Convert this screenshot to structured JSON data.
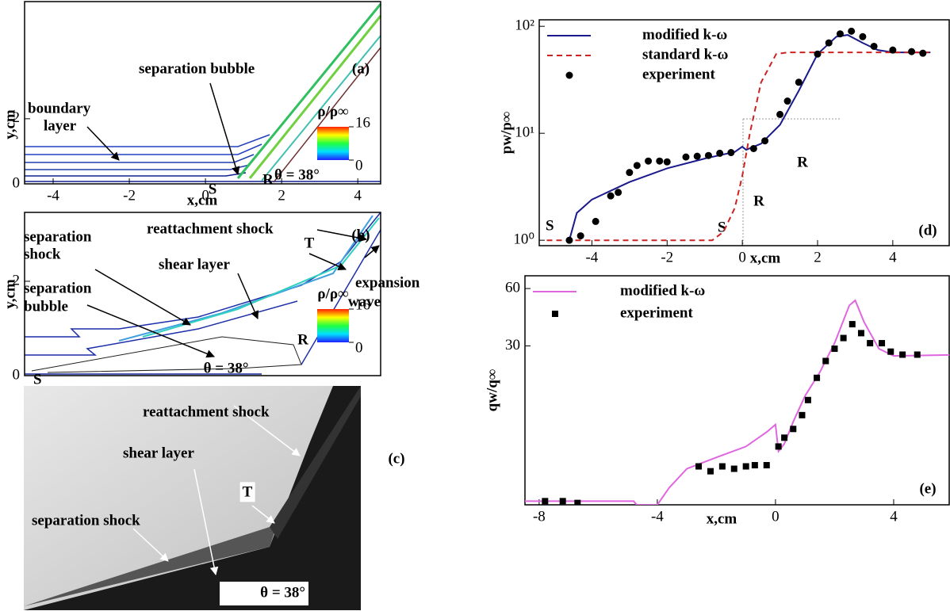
{
  "chart_data": [
    {
      "type": "contour",
      "panel": "(a)",
      "xlabel": "x,cm",
      "ylabel": "y,cm",
      "xlim": [
        -4.75,
        4.6
      ],
      "ylim": [
        0,
        5.6
      ],
      "xticks": [
        -4,
        -2,
        0,
        2,
        4
      ],
      "yticks": [
        0,
        2
      ],
      "colorbar": {
        "label": "ρ/ρ∞",
        "clim": [
          0,
          16
        ],
        "ticks": [
          0,
          16
        ]
      },
      "annotations": [
        "boundary",
        "layer",
        "separation bubble",
        "S",
        "R",
        "θ = 38°"
      ]
    },
    {
      "type": "contour",
      "panel": "(b)",
      "ylabel": "y,cm",
      "xlim": [
        -4.75,
        4.6
      ],
      "ylim": [
        0,
        3.46
      ],
      "yticks": [
        0,
        2
      ],
      "colorbar": {
        "label": "ρ/ρ∞",
        "clim": [
          0,
          16
        ],
        "ticks": [
          0,
          16
        ]
      },
      "annotations": [
        "separation",
        "shock",
        "reattachment shock",
        "shear layer",
        "separation",
        "bubble",
        "T",
        "expansion",
        "wave",
        "R",
        "S",
        "θ = 38°"
      ]
    },
    {
      "type": "photo",
      "panel": "(c)",
      "annotations": [
        "reattachment shock",
        "shear layer",
        "T",
        "separation shock",
        "θ = 38°"
      ]
    },
    {
      "type": "line",
      "panel": "(d)",
      "xlabel": "x,cm",
      "ylabel": "pw/p∞",
      "log_y": true,
      "xlim": [
        -5.4,
        5.5
      ],
      "ylim": [
        0.89,
        115
      ],
      "xticks": [
        -4,
        -2,
        0,
        2,
        4
      ],
      "yticks": [
        {
          "value": 1,
          "label": "10⁰"
        },
        {
          "value": 10,
          "label": "10¹"
        },
        {
          "value": 100,
          "label": "10²"
        }
      ],
      "series": [
        {
          "name": "modified k-ω",
          "color": "#1a1a8c",
          "style": "solid",
          "x": [
            -4.6,
            -4.4,
            -4,
            -3,
            -2,
            -1,
            -0.2,
            0,
            0.1,
            0.5,
            1,
            1.5,
            2,
            2.5,
            2.8,
            3.2,
            3.6,
            4,
            5
          ],
          "values": [
            1,
            1.8,
            2.4,
            3.5,
            4.7,
            5.8,
            6.7,
            7.5,
            7,
            8,
            12,
            25,
            55,
            80,
            83,
            70,
            60,
            57,
            57
          ]
        },
        {
          "name": "standard k-ω",
          "color": "#cc2222",
          "style": "dashed",
          "x": [
            -5.2,
            -0.8,
            -0.5,
            -0.2,
            0,
            0.2,
            0.5,
            0.9,
            1.2,
            5
          ],
          "values": [
            1,
            1,
            1.2,
            2,
            4,
            10,
            30,
            55,
            57,
            57
          ]
        },
        {
          "name": "experiment",
          "color": "#000000",
          "style": "markers",
          "x": [
            -4.6,
            -4.3,
            -3.9,
            -3.5,
            -3.3,
            -3,
            -2.8,
            -2.5,
            -2.2,
            -2,
            -1.5,
            -1.2,
            -0.9,
            -0.6,
            -0.3,
            0.3,
            0.6,
            1,
            1.2,
            1.5,
            2,
            2.3,
            2.6,
            2.9,
            3.2,
            3.5,
            4,
            4.5,
            4.8
          ],
          "values": [
            1,
            1.1,
            1.5,
            2.6,
            2.8,
            4.3,
            5,
            5.5,
            5.5,
            5.4,
            6,
            6.1,
            6.2,
            6.5,
            6.6,
            7.2,
            8.5,
            15,
            20,
            30,
            55,
            70,
            85,
            90,
            80,
            65,
            60,
            58,
            56
          ]
        }
      ],
      "annotations": [
        "S",
        "S",
        "R",
        "R"
      ]
    },
    {
      "type": "line",
      "panel": "(e)",
      "xlabel": "x,cm",
      "ylabel": "qw/q∞",
      "log_y": true,
      "xlim": [
        -8.48,
        5.88
      ],
      "ylim": [
        4.4,
        70
      ],
      "xticks": [
        -8,
        -4,
        0,
        4
      ],
      "yticks": [
        30,
        60
      ],
      "series": [
        {
          "name": "modified k-ω",
          "color": "#e066e0",
          "style": "solid",
          "x": [
            -8.5,
            -4.8,
            -4.7,
            -4,
            -3.6,
            -3,
            -2,
            -1,
            -0.3,
            0,
            0.1,
            0.3,
            0.6,
            1,
            1.5,
            2,
            2.5,
            2.7,
            3,
            3.5,
            4,
            5.9
          ],
          "values": [
            4.6,
            4.6,
            4.4,
            4.4,
            5.4,
            6.8,
            7.8,
            8.9,
            10.6,
            11.6,
            8.4,
            9.2,
            12,
            16.4,
            21.8,
            31,
            49,
            52,
            40,
            29,
            26.6,
            26.9
          ]
        },
        {
          "name": "experiment",
          "color": "#000000",
          "style": "squares",
          "x": [
            -7.8,
            -7.2,
            -6.7,
            -2.6,
            -2.2,
            -1.8,
            -1.4,
            -1,
            -0.7,
            -0.3,
            0.1,
            0.3,
            0.6,
            0.9,
            1.1,
            1.4,
            1.7,
            2,
            2.3,
            2.6,
            2.9,
            3.2,
            3.6,
            3.9,
            4.3,
            4.8
          ],
          "values": [
            4.6,
            4.6,
            4.5,
            7,
            6.6,
            7,
            6.8,
            7,
            7.1,
            7.1,
            8.9,
            9.9,
            11,
            13,
            15.6,
            20.4,
            25,
            29,
            33,
            39,
            35,
            31,
            31,
            28,
            27,
            27
          ]
        }
      ],
      "annotations": []
    }
  ]
}
